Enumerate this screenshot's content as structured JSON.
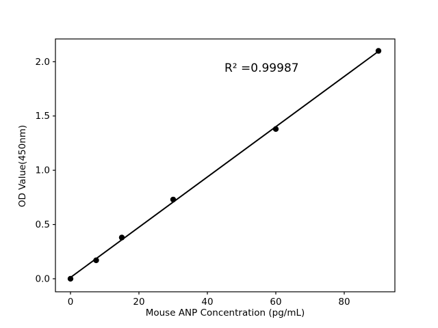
{
  "chart_data": {
    "type": "scatter",
    "title": "",
    "xlabel": "Mouse ANP Concentration (pg/mL)",
    "ylabel": "OD Value(450nm)",
    "annotation": {
      "text": "R² =0.99987"
    },
    "points": [
      {
        "x": 0,
        "y": 0.0
      },
      {
        "x": 7.5,
        "y": 0.17
      },
      {
        "x": 15,
        "y": 0.38
      },
      {
        "x": 30,
        "y": 0.73
      },
      {
        "x": 60,
        "y": 1.38
      },
      {
        "x": 90,
        "y": 2.1
      }
    ],
    "trendline": {
      "type": "linear_fit",
      "x_start": 0,
      "x_end": 90
    },
    "x_ticks": {
      "values": [
        0,
        20,
        40,
        60,
        80
      ],
      "labels": [
        "0",
        "20",
        "40",
        "60",
        "80"
      ]
    },
    "y_ticks": {
      "values": [
        0,
        0.5,
        1.0,
        1.5,
        2.0
      ],
      "labels": [
        "0.0",
        "0.5",
        "1.0",
        "1.5",
        "2.0"
      ]
    },
    "xlim": [
      -4.4,
      94.8
    ],
    "ylim": [
      -0.12,
      2.21
    ],
    "grid": false,
    "legend": "none",
    "marker_color": "#000000",
    "line_color": "#000000",
    "background_color": "#ffffff"
  }
}
